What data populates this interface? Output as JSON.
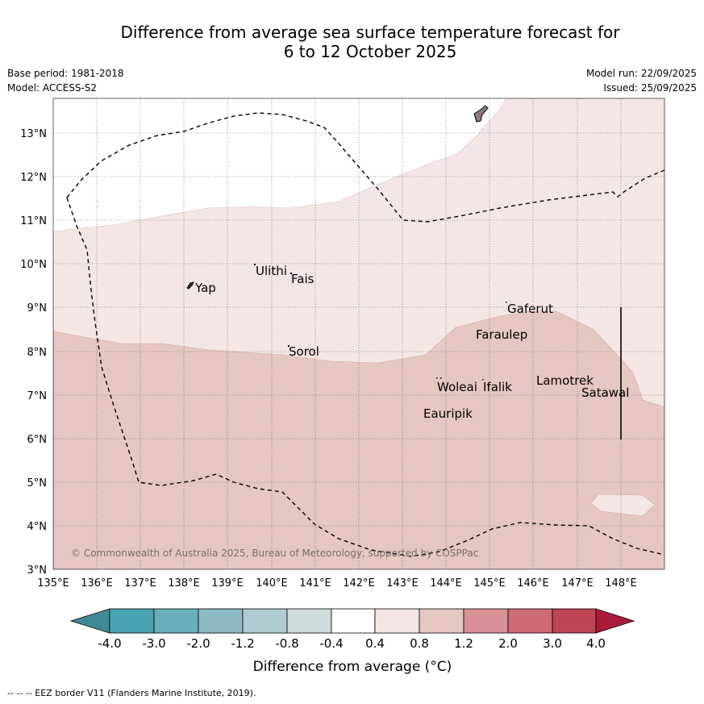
{
  "title": {
    "line1": "Difference from average sea surface temperature forecast for",
    "line2": "6 to 12 October 2025"
  },
  "meta": {
    "base_period": "Base period: 1981-2018",
    "model": "Model: ACCESS-S2",
    "model_run": "Model run: 22/09/2025",
    "issued": "Issued: 25/09/2025"
  },
  "map": {
    "lon_ticks": [
      "135°E",
      "136°E",
      "137°E",
      "138°E",
      "139°E",
      "140°E",
      "141°E",
      "142°E",
      "143°E",
      "144°E",
      "145°E",
      "146°E",
      "147°E",
      "148°E"
    ],
    "lat_ticks": [
      "3°N",
      "4°N",
      "5°N",
      "6°N",
      "7°N",
      "8°N",
      "9°N",
      "10°N",
      "11°N",
      "12°N",
      "13°N"
    ],
    "places": [
      "Yap",
      "Ulithi",
      "Fais",
      "Sorol",
      "Gaferut",
      "Faraulep",
      "Woleai",
      "Ifalik",
      "Lamotrek",
      "Satawal",
      "Eauripik"
    ],
    "watermark": "© Commonwealth of Australia 2025, Bureau of Meteorology, supported by COSPPac",
    "colors": {
      "band_04_08": "#f4e6e5",
      "band_08_12": "#e6c6c2",
      "land": "#8c7b7b"
    }
  },
  "colorbar": {
    "labels": [
      "-4.0",
      "-3.0",
      "-2.0",
      "-1.2",
      "-0.8",
      "-0.4",
      "0.4",
      "0.8",
      "1.2",
      "2.0",
      "3.0",
      "4.0"
    ],
    "colors": [
      "#3d8a96",
      "#4aa3b3",
      "#6aafbc",
      "#8cbac5",
      "#aecbd0",
      "#cfdbdc",
      "#ffffff",
      "#f4e6e5",
      "#e6c6c2",
      "#d88f95",
      "#cc6a75",
      "#bf4556",
      "#a81c3a"
    ],
    "axis_label": "Difference from average (°C)"
  },
  "footnote": "--  --  -- EEZ border V11 (Flanders Marine Institute, 2019)."
}
